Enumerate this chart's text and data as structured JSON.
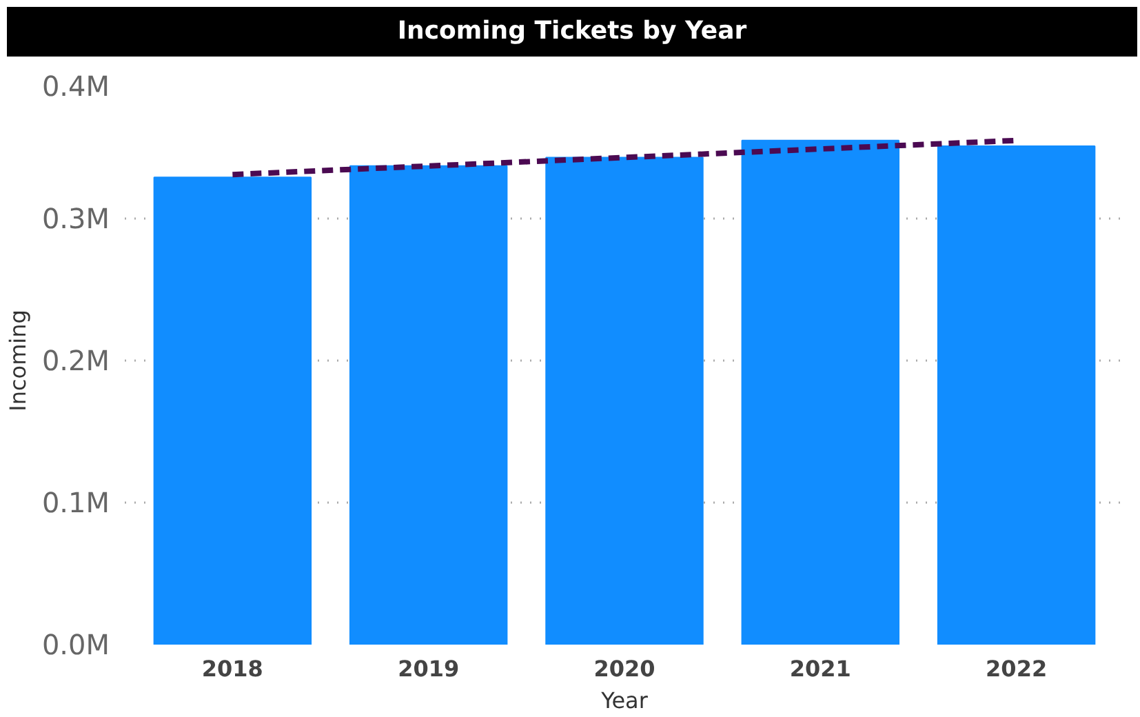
{
  "chart_data": {
    "type": "bar",
    "title": "Incoming Tickets by Year",
    "xlabel": "Year",
    "ylabel": "Incoming",
    "categories": [
      "2018",
      "2019",
      "2020",
      "2021",
      "2022"
    ],
    "series": [
      {
        "color": "#118dff",
        "values": [
          329000,
          337000,
          343000,
          355000,
          351000
        ]
      },
      {
        "type": "line",
        "color": "#4b0a52",
        "line_style": "dashed",
        "values": [
          331000,
          337000,
          343000,
          349000,
          355000
        ]
      }
    ],
    "ylim": [
      0,
      400000
    ],
    "yticks": [
      {
        "value": 0,
        "label": "0.0M"
      },
      {
        "value": 100000,
        "label": "0.1M"
      },
      {
        "value": 200000,
        "label": "0.2M"
      },
      {
        "value": 300000,
        "label": "0.3M"
      },
      {
        "value": 400000,
        "label": "0.4M"
      }
    ],
    "grid": "y"
  }
}
